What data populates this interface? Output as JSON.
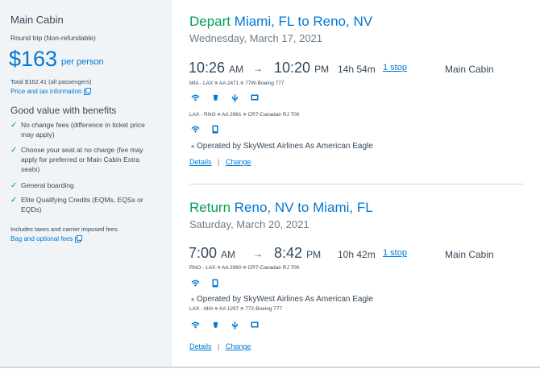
{
  "sidebar": {
    "cabin": "Main Cabin",
    "trip_type": "Round trip (Non-refundable)",
    "price": "$163",
    "per_person": "per person",
    "total": "Total $162.41 (all passengers)",
    "price_tax_link": "Price and tax information",
    "benefits_title": "Good value with benefits",
    "benefits": [
      [
        "No change fees (difference in ticket price",
        "may apply)"
      ],
      [
        "Choose your seat at no charge (fee may",
        "apply for preferred or Main Cabin Extra",
        "seats)"
      ],
      [
        "General boarding"
      ],
      [
        "Elite Qualifying Credits (EQMs, EQSs or",
        "EQDs)"
      ]
    ],
    "taxes_note": "Includes taxes and carrier imposed fees.",
    "bag_link": "Bag and optional fees"
  },
  "depart": {
    "label": "Depart",
    "route": "Miami, FL to Reno, NV",
    "date": "Wednesday, March 17, 2021",
    "dep_time": "10:26",
    "dep_ampm": "AM",
    "arr_time": "10:20",
    "arr_ampm": "PM",
    "duration": "14h 54m",
    "stops": "1 stop",
    "cabin": "Main Cabin",
    "seg1_route": "MIA - LAX",
    "seg1_flight": "AA 2471",
    "seg1_aircraft": "77W-Boeing 777",
    "seg2_route": "LAX - RNO",
    "seg2_flight": "AA 2961",
    "seg2_aircraft": "CR7-Canadair RJ 700",
    "operated": "Operated by SkyWest Airlines As American Eagle",
    "details": "Details",
    "pipe": "|",
    "change": "Change"
  },
  "return": {
    "label": "Return",
    "route": "Reno, NV to Miami, FL",
    "date": "Saturday, March 20, 2021",
    "dep_time": "7:00",
    "dep_ampm": "AM",
    "arr_time": "8:42",
    "arr_ampm": "PM",
    "duration": "10h 42m",
    "stops": "1 stop",
    "cabin": "Main Cabin",
    "seg1_route": "RNO - LAX",
    "seg1_flight": "AA 2960",
    "seg1_aircraft": "CR7-Canadair RJ 700",
    "operated": "Operated by SkyWest Airlines As American Eagle",
    "seg2_route": "LAX - MIA",
    "seg2_flight": "AA 1297",
    "seg2_aircraft": "772-Boeing 777",
    "details": "Details",
    "pipe": "|",
    "change": "Change"
  },
  "icons": {
    "wifi": "wifi-icon",
    "food": "food-icon",
    "power": "power-icon",
    "entertainment": "entertainment-icon",
    "device": "device-icon",
    "external": "external-link-icon",
    "check": "check-icon"
  },
  "colors": {
    "blue": "#0078d2",
    "green": "#00a05a",
    "sidebar_bg": "#f1f4f7",
    "text": "#36495a"
  }
}
